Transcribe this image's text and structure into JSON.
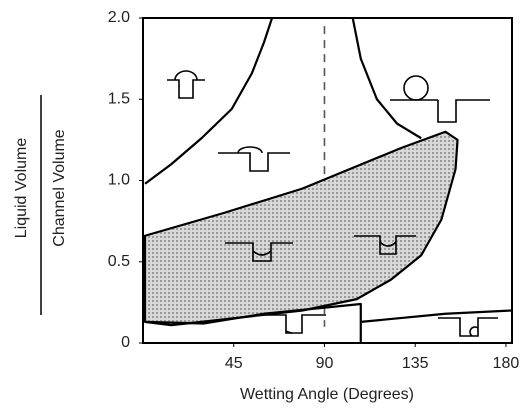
{
  "chart_data": {
    "type": "line",
    "xlabel": "Wetting Angle (Degrees)",
    "ylabel": [
      "Liquid Volume",
      "Channel Volume"
    ],
    "xlim": [
      0,
      183
    ],
    "ylim": [
      0,
      2
    ],
    "xticks": [
      45,
      90,
      135,
      180
    ],
    "yticks": [
      0,
      0.5,
      {
        "value": 1,
        "label": "1.0"
      },
      1.5,
      {
        "value": 2,
        "label": "2.0"
      }
    ],
    "color": "#000000",
    "fill_color": "#c8c8c8",
    "series": [
      {
        "style": "solid",
        "x": [
          1,
          14,
          29,
          44,
          54,
          60,
          64
        ],
        "values": [
          0.98,
          1.1,
          1.26,
          1.44,
          1.66,
          1.85,
          2.0
        ]
      },
      {
        "style": "solid",
        "x": [
          104,
          108,
          116,
          126,
          138
        ],
        "values": [
          2.0,
          1.75,
          1.5,
          1.35,
          1.26
        ]
      },
      {
        "style": "dashed",
        "x": [
          90,
          90
        ],
        "values": [
          1.95,
          0.1
        ]
      },
      {
        "style": "filled",
        "x": [
          1,
          40,
          79,
          128,
          150,
          156,
          155,
          148,
          138,
          123,
          106,
          79,
          29,
          14,
          1
        ],
        "values": [
          0.66,
          0.8,
          0.95,
          1.2,
          1.3,
          1.25,
          1.07,
          0.76,
          0.54,
          0.39,
          0.27,
          0.2,
          0.13,
          0.11,
          0.13
        ]
      },
      {
        "style": "solid",
        "x": [
          1,
          30,
          60,
          108,
          108,
          null,
          108,
          150,
          183
        ],
        "values": [
          0.13,
          0.12,
          0.18,
          0.24,
          0,
          null,
          0.13,
          0.18,
          0.2
        ]
      }
    ]
  }
}
